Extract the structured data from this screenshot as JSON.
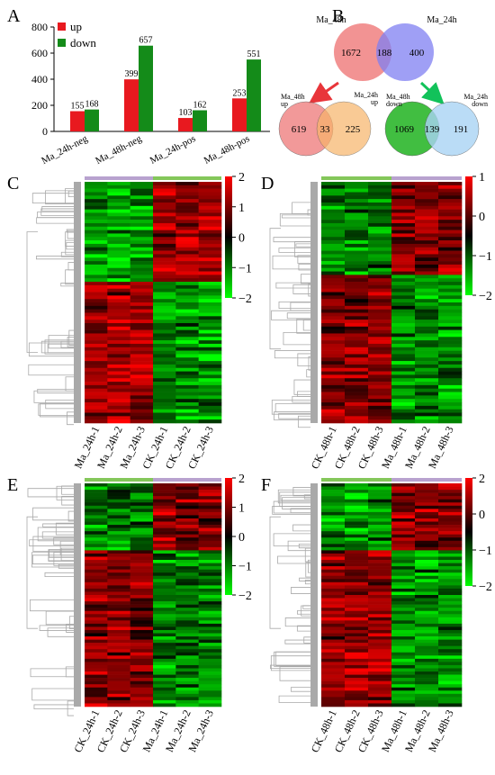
{
  "panel_labels": {
    "A": "A",
    "B": "B",
    "C": "C",
    "D": "D",
    "E": "E",
    "F": "F"
  },
  "colors": {
    "up": "#e8191f",
    "down": "#148b19",
    "venn_48h": "#f08080",
    "venn_24h": "#7f7ff2",
    "venn_up_24h": "#f7b469",
    "venn_down_48h": "#2db82d",
    "venn_down_24h": "#a9d4f5",
    "arrow_up": "#e8353a",
    "arrow_down": "#12c25a",
    "dendrogram": "#a9a9a9",
    "bar_ma": "#b8a2cf",
    "bar_ck": "#84c75a",
    "heat_high": "#ff0000",
    "heat_mid": "#000000",
    "heat_low": "#00ff00"
  },
  "chart_data": [
    {
      "type": "bar",
      "panel": "A",
      "categories": [
        "Ma_24h-neg",
        "Ma_48h-neg",
        "Ma_24h-pos",
        "Ma_48h-pos"
      ],
      "series": [
        {
          "name": "up",
          "values": [
            155,
            399,
            103,
            253
          ]
        },
        {
          "name": "down",
          "values": [
            168,
            657,
            162,
            551
          ]
        }
      ],
      "ylim": [
        0,
        800
      ],
      "yticks": [
        "0",
        "200",
        "400",
        "600",
        "800"
      ],
      "legend": "top-left"
    },
    {
      "type": "venn",
      "panel": "B",
      "sets": [
        {
          "title": "Ma_48h",
          "left": "1672",
          "overlap": "188",
          "right": "400",
          "right_title": "Ma_24h"
        },
        {
          "title": "Ma_48h\nup",
          "left": "619",
          "overlap": "33",
          "right": "225",
          "right_title": "Ma_24h\nup"
        },
        {
          "title": "Ma_48h\ndown",
          "left": "1069",
          "overlap": "139",
          "right": "191",
          "right_title": "Ma_24h\ndown"
        }
      ]
    },
    {
      "type": "heatmap",
      "panel": "C",
      "columns": [
        "Ma_24h-1",
        "Ma_24h-2",
        "Ma_24h-3",
        "CK_24h-1",
        "CK_24h-2",
        "CK_24h-3"
      ],
      "scale_ticks": [
        "2",
        "1",
        "0",
        "−1",
        "−2"
      ],
      "top_split": "24h treated first"
    },
    {
      "type": "heatmap",
      "panel": "D",
      "columns": [
        "CK_48h-1",
        "CK_48h-2",
        "CK_48h-3",
        "Ma_48h-1",
        "Ma_48h-2",
        "Ma_48h-3"
      ],
      "scale_ticks": [
        "1",
        "0",
        "−1",
        "−2"
      ]
    },
    {
      "type": "heatmap",
      "panel": "E",
      "columns": [
        "CK_24h-1",
        "CK_24h-2",
        "CK_24h-3",
        "Ma_24h-1",
        "Ma_24h-2",
        "Ma_24h-3"
      ],
      "scale_ticks": [
        "2",
        "1",
        "0",
        "−1",
        "−2"
      ]
    },
    {
      "type": "heatmap",
      "panel": "F",
      "columns": [
        "CK_48h-1",
        "CK_48h-2",
        "CK_48h-3",
        "Ma_48h-1",
        "Ma_48h-2",
        "Ma_48h-3"
      ],
      "scale_ticks": [
        "2",
        "0",
        "−1",
        "−2"
      ]
    }
  ]
}
